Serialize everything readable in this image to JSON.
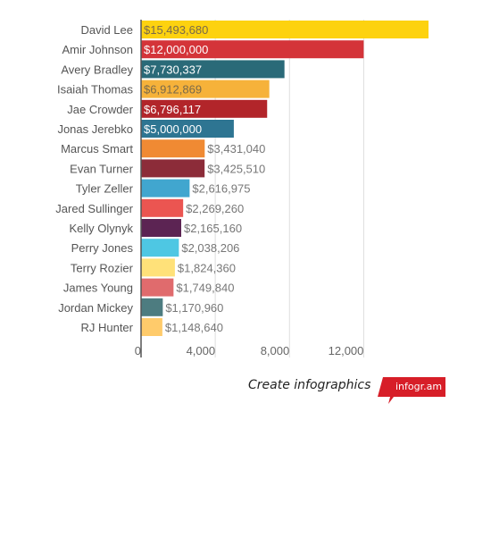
{
  "chart_data": {
    "type": "bar",
    "orientation": "horizontal",
    "categories": [
      "David Lee",
      "Amir Johnson",
      "Avery Bradley",
      "Isaiah Thomas",
      "Jae Crowder",
      "Jonas Jerebko",
      "Marcus Smart",
      "Evan Turner",
      "Tyler Zeller",
      "Jared Sullinger",
      "Kelly Olynyk",
      "Perry Jones",
      "Terry Rozier",
      "James Young",
      "Jordan Mickey",
      "RJ Hunter"
    ],
    "values": [
      15493680,
      12000000,
      7730337,
      6912869,
      6796117,
      5000000,
      3431040,
      3425510,
      2616975,
      2269260,
      2165160,
      2038206,
      1824360,
      1749840,
      1170960,
      1148640
    ],
    "value_labels": [
      "$15,493,680",
      "$12,000,000",
      "$7,730,337",
      "$6,912,869",
      "$6,796,117",
      "$5,000,000",
      "$3,431,040",
      "$3,425,510",
      "$2,616,975",
      "$2,269,260",
      "$2,165,160",
      "$2,038,206",
      "$1,824,360",
      "$1,749,840",
      "$1,170,960",
      "$1,148,640"
    ],
    "colors": [
      "#fdd20f",
      "#d43439",
      "#2a6a78",
      "#f6b23a",
      "#b2252a",
      "#2e7592",
      "#f08a33",
      "#8c2c39",
      "#41a6cf",
      "#eb5551",
      "#5c2453",
      "#4ec7e3",
      "#ffe179",
      "#e06b6d",
      "#4d7c80",
      "#ffcb6b"
    ],
    "label_inside": [
      true,
      true,
      true,
      true,
      true,
      true,
      false,
      false,
      false,
      false,
      false,
      false,
      false,
      false,
      false,
      false
    ],
    "label_inside_colors": [
      "#7a6a4a",
      "#ffffff",
      "#ffffff",
      "#7a6a4a",
      "#ffffff",
      "#ffffff"
    ],
    "xlim": [
      0,
      15493680
    ],
    "xticks": [
      0,
      4000,
      8000,
      12000
    ],
    "xtick_labels": [
      "0",
      "4,000",
      "8,000",
      "12,000"
    ],
    "x_tick_unit": 1000,
    "grid": true,
    "title": "",
    "xlabel": "",
    "ylabel": ""
  },
  "footer": {
    "text": "Create infographics",
    "badge": "infogr.am",
    "badge_color": "#d71e28"
  }
}
